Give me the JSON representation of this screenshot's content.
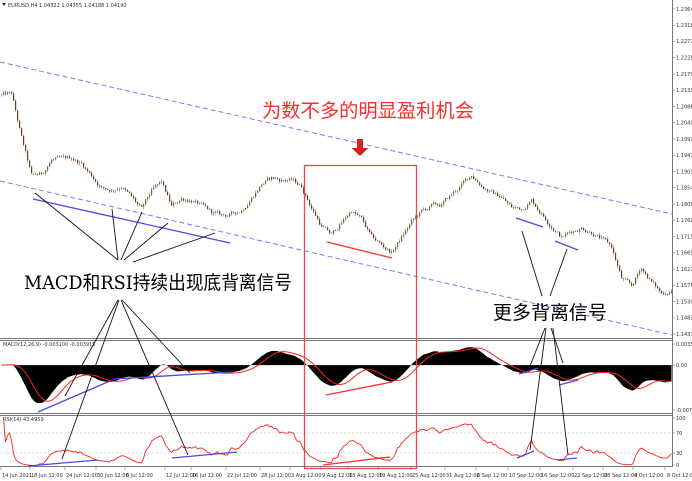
{
  "colors": {
    "background": "#ffffff",
    "channel_line": "#7a7aff",
    "divergence_blue": "#4a4ae0",
    "divergence_red": "#ff3030",
    "annotation_text_red": "#ff2a2a",
    "macd_histogram": "#000000",
    "macd_signal": "#ff2020",
    "rsi_line": "#ff2020",
    "highlight_box": "#e84848",
    "arrow": "#e02020"
  },
  "annotations": {
    "top_note": "为数不多的明显盈利机会",
    "left_note": "MACD和RSI持续出现底背离信号",
    "right_note": "更多背离信号",
    "arrow_icon": "down-arrow-icon"
  },
  "chart_data": [
    {
      "type": "candlestick",
      "header": "EURUSD,H4  1.04322 1.04355 1.04188 1.04190",
      "symbol": "EURUSD",
      "timeframe": "H4",
      "close_approx": [
        1.2119,
        1.2122,
        1.1996,
        1.1887,
        1.1893,
        1.1934,
        1.1934,
        1.194,
        1.1924,
        1.189,
        1.1855,
        1.1848,
        1.1861,
        1.1827,
        1.1791,
        1.1844,
        1.1869,
        1.18,
        1.1824,
        1.182,
        1.1802,
        1.1783,
        1.1775,
        1.1778,
        1.1791,
        1.1828,
        1.1866,
        1.1882,
        1.1877,
        1.1877,
        1.1858,
        1.1798,
        1.1745,
        1.172,
        1.1755,
        1.179,
        1.1764,
        1.1712,
        1.1691,
        1.167,
        1.1713,
        1.1757,
        1.1786,
        1.1802,
        1.1805,
        1.1834,
        1.1862,
        1.1891,
        1.1862,
        1.1841,
        1.1828,
        1.1798,
        1.1795,
        1.182,
        1.1782,
        1.1747,
        1.1714,
        1.173,
        1.1741,
        1.173,
        1.1708,
        1.1686,
        1.1595,
        1.1572,
        1.1627,
        1.1586,
        1.1552,
        1.1563
      ],
      "y_ticks": [
        "1.23645",
        "1.23180",
        "1.22720",
        "1.22255",
        "1.21790",
        "1.21330",
        "1.20865",
        "1.20400",
        "1.19935",
        "1.19475",
        "1.19010",
        "1.18545",
        "1.18080",
        "1.17620",
        "1.17155",
        "1.16690",
        "1.16225",
        "1.15765",
        "1.15300",
        "1.14835",
        "1.14375"
      ],
      "ylim": [
        1.14375,
        1.23645
      ],
      "x_ticks": [
        "14 Jun 2021",
        "18 Jun 12:00",
        "24 Jun 12:00",
        "30 Jun 12:00",
        "6 Jul 12:00",
        "12 Jul 12:00",
        "16 Jul 12:00",
        "22 Jul 12:00",
        "28 Jul 12:00",
        "3 Aug 12:00",
        "9 Aug 12:00",
        "13 Aug 12:00",
        "19 Aug 12:00",
        "25 Aug 12:00",
        "31 Aug 12:00",
        "6 Sep 12:00",
        "10 Sep 12:00",
        "16 Sep 12:00",
        "22 Sep 12:00",
        "28 Sep 12:00",
        "4 Oct 12:00",
        "8 Oct 12:00"
      ],
      "trend_channel": "descending",
      "grid": false
    },
    {
      "type": "bar",
      "header": "MACD(12,26,9) -0.003100 -0.003915",
      "params": [
        12,
        26,
        9
      ],
      "y_ticks": [
        "0.003518",
        "0.00",
        "-0.007108"
      ],
      "ylim": [
        -0.007108,
        0.003518
      ],
      "series": [
        {
          "name": "MACD",
          "kind": "histogram"
        },
        {
          "name": "Signal",
          "kind": "line"
        }
      ]
    },
    {
      "type": "line",
      "header": "RSI(14) 43.4959",
      "period": 14,
      "y_ticks": [
        "100",
        "70",
        "30",
        "0"
      ],
      "ylim": [
        0,
        100
      ],
      "levels": [
        70,
        30
      ]
    }
  ]
}
